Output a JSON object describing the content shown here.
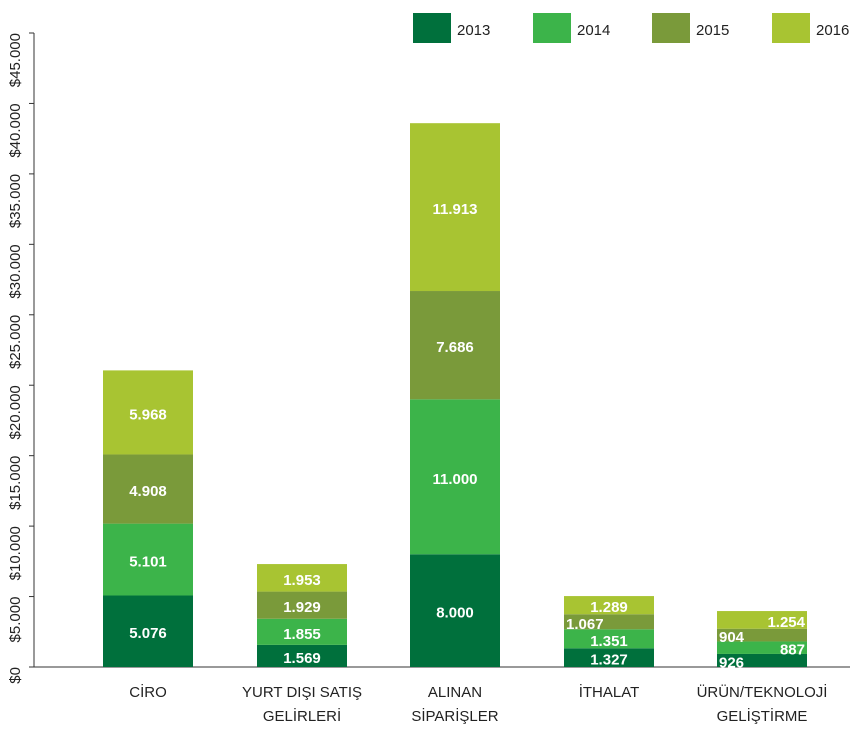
{
  "chart_data": {
    "type": "bar",
    "stacked": true,
    "categories": [
      [
        "CİRO"
      ],
      [
        "YURT DIŞI SATIŞ",
        "GELİRLERİ"
      ],
      [
        "ALINAN",
        "SİPARİŞLER"
      ],
      [
        "İTHALAT"
      ],
      [
        "ÜRÜN/TEKNOLOJİ",
        "GELİŞTİRME"
      ]
    ],
    "series": [
      {
        "name": "2013",
        "color": "#00703c",
        "values": [
          5076,
          1569,
          8000,
          1327,
          926
        ],
        "value_labels": [
          "5.076",
          "1.569",
          "8.000",
          "1.327",
          "926"
        ]
      },
      {
        "name": "2014",
        "color": "#3cb44a",
        "values": [
          5101,
          1855,
          11000,
          1351,
          887
        ],
        "value_labels": [
          "5.101",
          "1.855",
          "11.000",
          "1.351",
          "887"
        ]
      },
      {
        "name": "2015",
        "color": "#7a9a3a",
        "values": [
          4908,
          1929,
          7686,
          1067,
          904
        ],
        "value_labels": [
          "4.908",
          "1.929",
          "7.686",
          "1.067",
          "904"
        ]
      },
      {
        "name": "2016",
        "color": "#a8c432",
        "values": [
          5968,
          1953,
          11913,
          1289,
          1254
        ],
        "value_labels": [
          "5.968",
          "1.953",
          "11.913",
          "1.289",
          "1.254"
        ]
      }
    ],
    "ylim": [
      0,
      45000
    ],
    "yticks": [
      {
        "value": 0,
        "label": "$0"
      },
      {
        "value": 5000,
        "label": "$5.000"
      },
      {
        "value": 10000,
        "label": "$10.000"
      },
      {
        "value": 15000,
        "label": "$15.000"
      },
      {
        "value": 20000,
        "label": "$20.000"
      },
      {
        "value": 25000,
        "label": "$25.000"
      },
      {
        "value": 30000,
        "label": "$30.000"
      },
      {
        "value": 35000,
        "label": "$35.000"
      },
      {
        "value": 40000,
        "label": "$40.000"
      },
      {
        "value": 45000,
        "label": "$45.000"
      }
    ],
    "legend": "top-right"
  }
}
